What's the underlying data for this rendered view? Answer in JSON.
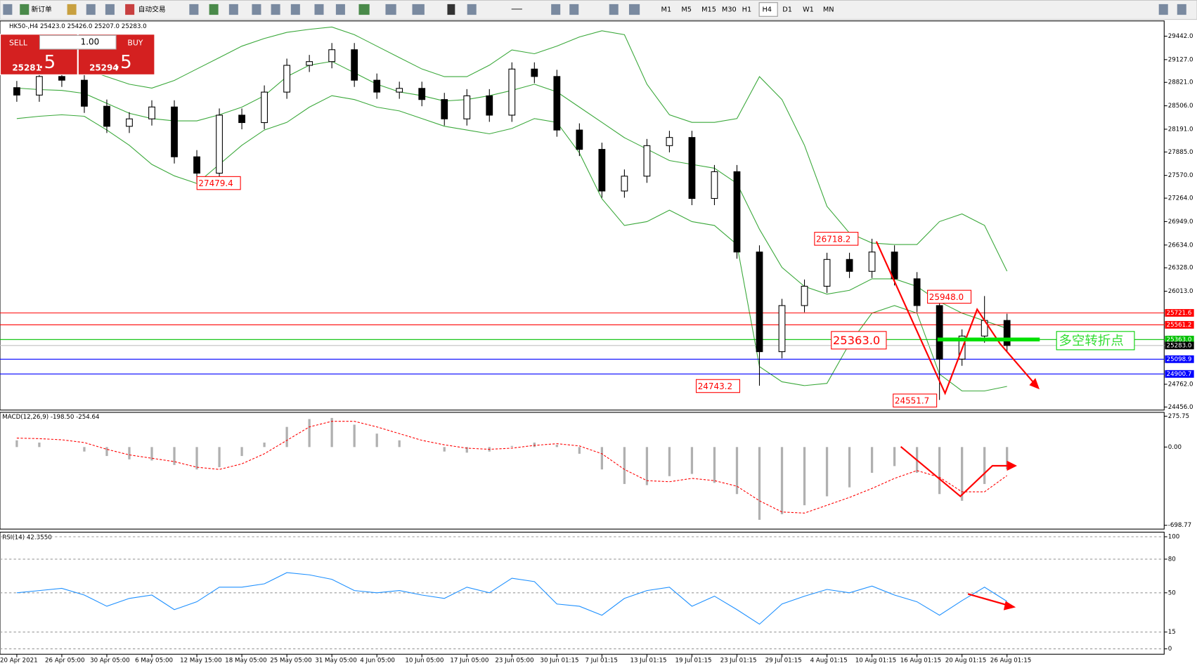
{
  "toolbar": {
    "buttons": [
      "新订单",
      "自动交易"
    ],
    "timeframes": [
      "M1",
      "M5",
      "M15",
      "M30",
      "H1",
      "H4",
      "D1",
      "W1",
      "MN"
    ]
  },
  "trade_panel": {
    "sell": "SELL",
    "buy": "BUY",
    "volume": "1.00",
    "sell_price": {
      "main": "25281",
      "frac": ".5"
    },
    "buy_price": {
      "main": "25294",
      "frac": ".5"
    }
  },
  "chart_data": [
    {
      "type": "candlestick",
      "title": "HK50-,H4  25423.0 25426.0 25207.0 25283.0",
      "categories": [
        "20 Apr 2021",
        null,
        "26 Apr 05:00",
        null,
        "30 Apr 05:00",
        null,
        "6 May 05:00",
        null,
        "12 May 15:00",
        null,
        "18 May 05:00",
        null,
        "25 May 05:00",
        null,
        "31 May 05:00",
        null,
        "4 Jun 05:00",
        null,
        "10 Jun 05:00",
        null,
        "17 Jun 05:00",
        null,
        "23 Jun 05:00",
        null,
        "30 Jun 01:15",
        null,
        "7 Jul 01:15",
        null,
        "13 Jul 01:15",
        null,
        "19 Jul 01:15",
        null,
        "23 Jul 01:15",
        null,
        "29 Jul 01:15",
        null,
        "4 Aug 01:15",
        null,
        "10 Aug 01:15",
        null,
        "16 Aug 01:15",
        null,
        "20 Aug 01:15",
        null,
        "26 Aug 01:15"
      ],
      "open": [
        28750,
        28650,
        28900,
        28850,
        28500,
        28230,
        28330,
        28490,
        27820,
        27600,
        28380,
        28280,
        28690,
        29050,
        29100,
        29260,
        28850,
        28690,
        28740,
        28590,
        28330,
        28640,
        28380,
        29000,
        28900,
        28180,
        27920,
        27360,
        27560,
        27970,
        28080,
        27260,
        27620,
        26540,
        25200,
        25820,
        26080,
        26440,
        26280,
        26540,
        26180,
        25820,
        25100,
        25410,
        25620
      ],
      "high": [
        28840,
        28990,
        28990,
        28940,
        28590,
        28420,
        28580,
        28580,
        27910,
        28470,
        28470,
        28780,
        29140,
        29190,
        29350,
        29350,
        28940,
        28830,
        28830,
        28680,
        28730,
        28730,
        29090,
        29090,
        28990,
        28270,
        28010,
        27650,
        28060,
        28170,
        28170,
        27710,
        27710,
        26630,
        25910,
        26170,
        26530,
        26530,
        26718.2,
        26630,
        26270,
        25910,
        25500,
        25948.0,
        25710
      ],
      "low": [
        28560,
        28560,
        28760,
        28410,
        28140,
        28140,
        28240,
        27730,
        27479.4,
        27510,
        28190,
        28190,
        28600,
        28960,
        29010,
        28760,
        28600,
        28600,
        28500,
        28240,
        28240,
        28290,
        28290,
        28810,
        28090,
        27830,
        27270,
        27270,
        27470,
        27880,
        27170,
        27170,
        26450,
        24743.2,
        25110,
        25730,
        25990,
        26190,
        26190,
        26090,
        25730,
        24551.7,
        25010,
        25320,
        25207
      ],
      "close": [
        28650,
        28900,
        28850,
        28500,
        28230,
        28330,
        28490,
        27820,
        27600,
        28380,
        28280,
        28690,
        29050,
        29100,
        29260,
        28850,
        28690,
        28740,
        28590,
        28330,
        28640,
        28380,
        29000,
        28900,
        28180,
        27920,
        27360,
        27560,
        27970,
        28080,
        27260,
        27620,
        26540,
        25200,
        25820,
        26080,
        26440,
        26280,
        26540,
        26180,
        25820,
        25100,
        25410,
        25620,
        25283
      ],
      "bands": {
        "color": "#3aa83a",
        "upper": [
          29103,
          29083,
          29052,
          29001,
          28898,
          28796,
          28744,
          28847,
          29001,
          29154,
          29308,
          29411,
          29493,
          29534,
          29565,
          29462,
          29308,
          29154,
          29001,
          28898,
          28898,
          29052,
          29257,
          29206,
          29308,
          29431,
          29514,
          29462,
          28796,
          28385,
          28283,
          28283,
          28334,
          28898,
          28590,
          27975,
          27154,
          26795,
          26661,
          26641,
          26641,
          26949,
          27052,
          26898,
          26282
        ],
        "middle": [
          28744,
          28724,
          28713,
          28672,
          28539,
          28405,
          28334,
          28303,
          28303,
          28385,
          28488,
          28642,
          28898,
          29052,
          29103,
          28950,
          28796,
          28693,
          28642,
          28570,
          28590,
          28642,
          28713,
          28796,
          28693,
          28488,
          28283,
          28077,
          27924,
          27770,
          27718,
          27667,
          27462,
          26846,
          26333,
          26077,
          25974,
          26025,
          26179,
          26179,
          26077,
          25871,
          25718,
          25615,
          25513
        ],
        "lower": [
          28334,
          28365,
          28385,
          28365,
          28180,
          27975,
          27718,
          27564,
          27462,
          27718,
          27975,
          28180,
          28283,
          28488,
          28642,
          28590,
          28488,
          28437,
          28334,
          28231,
          28180,
          28129,
          28201,
          28334,
          28283,
          27872,
          27257,
          26897,
          26949,
          27103,
          26949,
          26897,
          26641,
          25000,
          24795,
          24744,
          24774,
          25308,
          25718,
          25820,
          25718,
          24898,
          24672,
          24672,
          24733
        ]
      },
      "ylim": [
        24415,
        29647
      ],
      "yticks": [
        {
          "value": 29442,
          "label": "29442.0"
        },
        {
          "value": 29127,
          "label": "29127.0"
        },
        {
          "value": 28821,
          "label": "28821.0"
        },
        {
          "value": 28506,
          "label": "28506.0"
        },
        {
          "value": 28191,
          "label": "28191.0"
        },
        {
          "value": 27885,
          "label": "27885.0"
        },
        {
          "value": 27570,
          "label": "27570.0"
        },
        {
          "value": 27264,
          "label": "27264.0"
        },
        {
          "value": 26949,
          "label": "26949.0"
        },
        {
          "value": 26634,
          "label": "26634.0"
        },
        {
          "value": 26328,
          "label": "26328.0"
        },
        {
          "value": 26013,
          "label": "26013.0"
        },
        {
          "value": 24762,
          "label": "24762.0"
        },
        {
          "value": 24456,
          "label": "24456.0"
        }
      ],
      "levels": [
        {
          "value": 25721.6,
          "label": "25721.6",
          "color": "#ff0000",
          "tag": "#ff0000"
        },
        {
          "value": 25561.2,
          "label": "25561.2",
          "color": "#ff0000",
          "tag": "#ff0000"
        },
        {
          "value": 25363.0,
          "label": "25363.0",
          "color": "#00c000",
          "tag": "#00c000"
        },
        {
          "value": 25283.0,
          "label": "25283.0",
          "color": "#c0c0c0",
          "tag": "#000000"
        },
        {
          "value": 25098.9,
          "label": "25098.9",
          "color": "#0000ff",
          "tag": "#0000ff"
        },
        {
          "value": 24900.7,
          "label": "24900.7",
          "color": "#0000ff",
          "tag": "#0000ff"
        }
      ],
      "annotations": [
        "27479.4",
        "26718.2",
        "25948.0",
        "25363.0",
        "24743.2",
        "24551.7",
        "多空转折点"
      ]
    },
    {
      "type": "macd",
      "title": "MACD(12,26,9) -198.50 -254.64",
      "histogram": [
        60,
        40,
        0,
        -40,
        -80,
        -110,
        -120,
        -160,
        -200,
        -180,
        -80,
        40,
        180,
        250,
        260,
        200,
        120,
        60,
        0,
        -40,
        -50,
        -40,
        10,
        40,
        20,
        -60,
        -200,
        -330,
        -340,
        -260,
        -240,
        -320,
        -420,
        -650,
        -600,
        -520,
        -440,
        -360,
        -230,
        -170,
        -230,
        -420,
        -480,
        -330,
        -198.5
      ],
      "signal": [
        80,
        75,
        65,
        40,
        -20,
        -70,
        -100,
        -130,
        -180,
        -200,
        -150,
        -60,
        60,
        180,
        230,
        230,
        180,
        120,
        60,
        20,
        -10,
        -20,
        -10,
        15,
        30,
        10,
        -60,
        -200,
        -300,
        -310,
        -280,
        -300,
        -350,
        -480,
        -580,
        -590,
        -520,
        -450,
        -370,
        -280,
        -210,
        -270,
        -400,
        -400,
        -254.64
      ],
      "histogram_color": "#b0b0b0",
      "signal_color": "#ff0000",
      "ylim": [
        -733,
        310
      ],
      "yticks": [
        {
          "value": 275.75,
          "label": "275.75"
        },
        {
          "value": 0,
          "label": "0.00"
        },
        {
          "value": -698.77,
          "label": "-698.77"
        }
      ]
    },
    {
      "type": "line",
      "title": "RSI(14) 42.3550",
      "color": "#1e90ff",
      "values": [
        50,
        52,
        54,
        48,
        38,
        45,
        48,
        35,
        42,
        55,
        55,
        58,
        68,
        66,
        62,
        52,
        50,
        52,
        48,
        45,
        55,
        50,
        63,
        60,
        40,
        38,
        30,
        45,
        52,
        55,
        38,
        47,
        35,
        22,
        40,
        47,
        53,
        50,
        56,
        48,
        42,
        30,
        43,
        55,
        42.355
      ],
      "ylim": [
        -4.8,
        104.1
      ],
      "yticks": [
        100,
        80,
        50,
        15,
        0
      ]
    }
  ]
}
